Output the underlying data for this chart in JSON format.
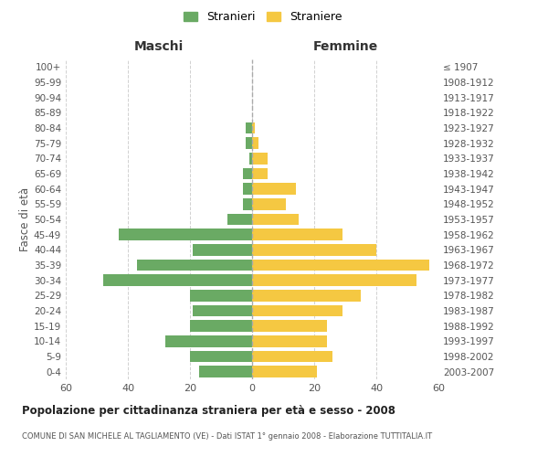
{
  "age_groups": [
    "0-4",
    "5-9",
    "10-14",
    "15-19",
    "20-24",
    "25-29",
    "30-34",
    "35-39",
    "40-44",
    "45-49",
    "50-54",
    "55-59",
    "60-64",
    "65-69",
    "70-74",
    "75-79",
    "80-84",
    "85-89",
    "90-94",
    "95-99",
    "100+"
  ],
  "birth_years": [
    "2003-2007",
    "1998-2002",
    "1993-1997",
    "1988-1992",
    "1983-1987",
    "1978-1982",
    "1973-1977",
    "1968-1972",
    "1963-1967",
    "1958-1962",
    "1953-1957",
    "1948-1952",
    "1943-1947",
    "1938-1942",
    "1933-1937",
    "1928-1932",
    "1923-1927",
    "1918-1922",
    "1913-1917",
    "1908-1912",
    "≤ 1907"
  ],
  "maschi": [
    17,
    20,
    28,
    20,
    19,
    20,
    48,
    37,
    19,
    43,
    8,
    3,
    3,
    3,
    1,
    2,
    2,
    0,
    0,
    0,
    0
  ],
  "femmine": [
    21,
    26,
    24,
    24,
    29,
    35,
    53,
    57,
    40,
    29,
    15,
    11,
    14,
    5,
    5,
    2,
    1,
    0,
    0,
    0,
    0
  ],
  "color_maschi": "#6aaa64",
  "color_femmine": "#f5c842",
  "background_color": "#ffffff",
  "grid_color": "#cccccc",
  "title": "Popolazione per cittadinanza straniera per età e sesso - 2008",
  "subtitle": "COMUNE DI SAN MICHELE AL TAGLIAMENTO (VE) - Dati ISTAT 1° gennaio 2008 - Elaborazione TUTTITALIA.IT",
  "xlabel_left": "Maschi",
  "xlabel_right": "Femmine",
  "ylabel_left": "Fasce di età",
  "legend_stranieri": "Stranieri",
  "legend_straniere": "Straniere",
  "xlim": 60
}
